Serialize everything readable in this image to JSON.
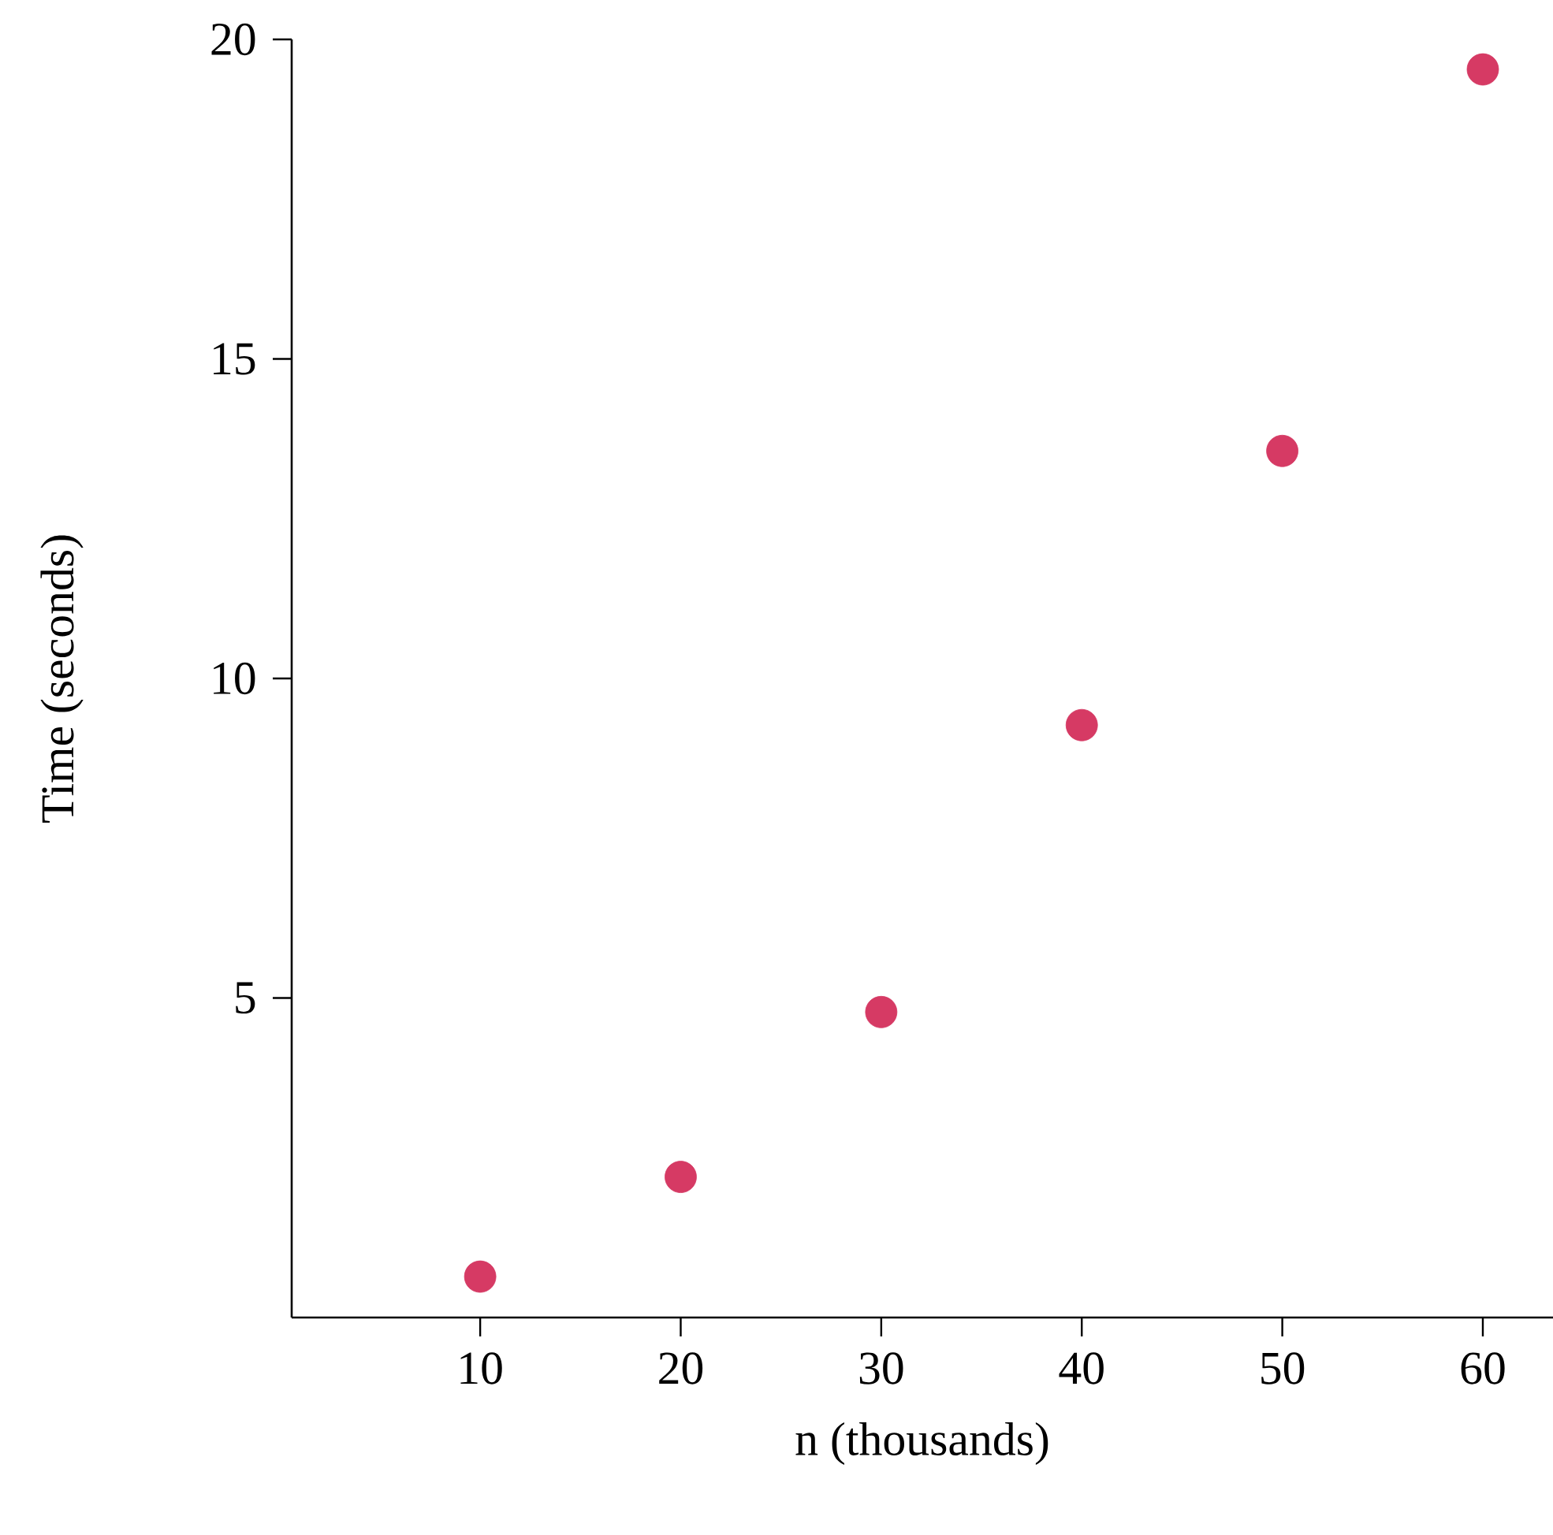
{
  "chart_data": {
    "type": "scatter",
    "xlabel": "n (thousands)",
    "ylabel": "Time (seconds)",
    "x": [
      10,
      20,
      30,
      40,
      50,
      60
    ],
    "series": [
      {
        "color": "#d63a64",
        "values": [
          0.64,
          2.2,
          4.78,
          9.27,
          13.56,
          19.53
        ]
      }
    ],
    "xlim": [
      0.6,
      63.5
    ],
    "ylim": [
      0,
      20
    ],
    "xticks": [
      10,
      20,
      30,
      40,
      50,
      60
    ],
    "yticks": [
      5,
      10,
      15,
      20
    ],
    "marker": "circle",
    "grid": false
  }
}
